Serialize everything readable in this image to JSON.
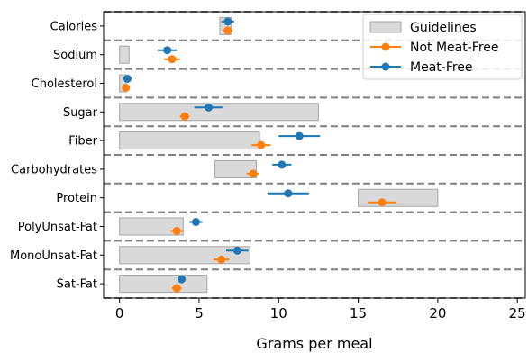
{
  "chart_data": {
    "type": "dot-errorbar",
    "xlabel": "Grams per meal",
    "xlim": [
      -1,
      25.5
    ],
    "xticks": [
      0,
      5,
      10,
      15,
      20,
      25
    ],
    "grid": false,
    "legend": {
      "placement": "upper-right",
      "entries": [
        "Guidelines",
        "Not Meat-Free",
        "Meat-Free"
      ]
    },
    "colors": {
      "guidelines_fill": "#d9d9d9",
      "guidelines_edge": "#a6a6a6",
      "not_meat_free": "#ff7f0e",
      "meat_free": "#1f77b4",
      "separator": "#808080"
    },
    "categories": [
      "Calories",
      "Sodium",
      "Cholesterol",
      "Sugar",
      "Fiber",
      "Carbohydrates",
      "Protein",
      "PolyUnsat-Fat",
      "MonoUnsat-Fat",
      "Sat-Fat"
    ],
    "guidelines": [
      {
        "low": 6.3,
        "high": 7.0
      },
      {
        "low": 0.0,
        "high": 0.6
      },
      {
        "low": 0.0,
        "high": 0.4
      },
      {
        "low": 0.0,
        "high": 12.5
      },
      {
        "low": 0.0,
        "high": 8.8
      },
      {
        "low": 6.0,
        "high": 8.6
      },
      {
        "low": 15.0,
        "high": 20.0
      },
      {
        "low": 0.0,
        "high": 4.0
      },
      {
        "low": 0.0,
        "high": 8.2
      },
      {
        "low": 0.0,
        "high": 5.5
      }
    ],
    "series": [
      {
        "name": "Not Meat-Free",
        "values": [
          6.8,
          3.3,
          0.4,
          4.1,
          8.9,
          8.4,
          16.5,
          3.6,
          6.4,
          3.6
        ],
        "errors": [
          0.3,
          0.5,
          0.1,
          0.3,
          0.6,
          0.4,
          0.9,
          0.4,
          0.5,
          0.3
        ]
      },
      {
        "name": "Meat-Free",
        "values": [
          6.8,
          3.0,
          0.5,
          5.6,
          11.3,
          10.2,
          10.6,
          4.8,
          7.4,
          3.9
        ],
        "errors": [
          0.4,
          0.6,
          0.1,
          0.9,
          1.3,
          0.6,
          1.3,
          0.4,
          0.7,
          0.2
        ]
      }
    ]
  }
}
